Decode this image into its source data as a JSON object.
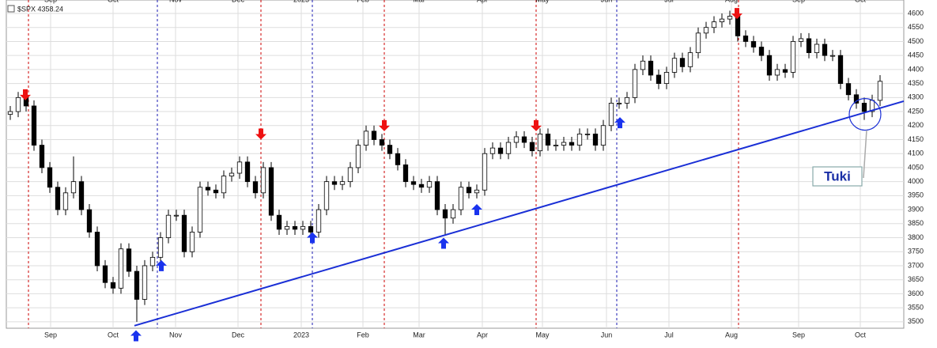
{
  "chart_data": {
    "type": "candlestick",
    "title": "$SPX 4358.24",
    "open": [
      4240,
      4250,
      4300,
      4270,
      4130,
      4050,
      3980,
      3900,
      3960,
      4000,
      3900,
      3820,
      3700,
      3640,
      3620,
      3760,
      3680,
      3580,
      3700,
      3730,
      3800,
      3880,
      3880,
      3750,
      3820,
      3980,
      3970,
      3960,
      4020,
      4030,
      4070,
      4000,
      3960,
      4050,
      3880,
      3830,
      3840,
      3830,
      3840,
      3820,
      3900,
      4000,
      3990,
      4000,
      4050,
      4130,
      4180,
      4150,
      4130,
      4100,
      4060,
      4000,
      3990,
      3980,
      4000,
      3900,
      3870,
      3900,
      3980,
      3960,
      3970,
      4100,
      4120,
      4100,
      4140,
      4160,
      4140,
      4110,
      4170,
      4130,
      4130,
      4140,
      4130,
      4170,
      4170,
      4130,
      4200,
      4280,
      4280,
      4300,
      4400,
      4430,
      4380,
      4350,
      4390,
      4440,
      4410,
      4460,
      4530,
      4550,
      4570,
      4580,
      4590,
      4520,
      4500,
      4480,
      4450,
      4380,
      4400,
      4390,
      4500,
      4510,
      4460,
      4490,
      4450,
      4450,
      4350,
      4310,
      4280,
      4250,
      4290
    ],
    "high": [
      4270,
      4320,
      4320,
      4290,
      4150,
      4070,
      4000,
      3980,
      4090,
      4020,
      3920,
      3840,
      3720,
      3660,
      3780,
      3780,
      3700,
      3720,
      3750,
      3820,
      3900,
      3900,
      3900,
      3840,
      4000,
      4000,
      3990,
      4040,
      4050,
      4090,
      4090,
      4020,
      4070,
      4070,
      3900,
      3860,
      3860,
      3860,
      3860,
      3920,
      4020,
      4020,
      4020,
      4070,
      4150,
      4200,
      4200,
      4170,
      4150,
      4120,
      4080,
      4020,
      4010,
      4020,
      4020,
      3920,
      3920,
      4000,
      4000,
      3990,
      4120,
      4140,
      4140,
      4160,
      4180,
      4180,
      4160,
      4190,
      4190,
      4150,
      4160,
      4160,
      4190,
      4190,
      4190,
      4220,
      4300,
      4300,
      4320,
      4420,
      4450,
      4450,
      4400,
      4410,
      4460,
      4460,
      4480,
      4550,
      4570,
      4590,
      4600,
      4610,
      4610,
      4540,
      4520,
      4500,
      4470,
      4420,
      4420,
      4520,
      4530,
      4530,
      4510,
      4510,
      4470,
      4470,
      4370,
      4330,
      4300,
      4310,
      4380
    ],
    "low": [
      4220,
      4230,
      4250,
      4110,
      4030,
      3960,
      3880,
      3880,
      3940,
      3880,
      3800,
      3680,
      3620,
      3600,
      3600,
      3660,
      3500,
      3560,
      3680,
      3710,
      3780,
      3860,
      3730,
      3730,
      3800,
      3950,
      3940,
      3940,
      4000,
      4010,
      3980,
      3940,
      3940,
      3860,
      3810,
      3810,
      3810,
      3810,
      3800,
      3800,
      3880,
      3970,
      3970,
      3980,
      4030,
      4110,
      4130,
      4110,
      4080,
      4040,
      3980,
      3970,
      3960,
      3960,
      3880,
      3810,
      3850,
      3880,
      3940,
      3940,
      3950,
      4080,
      4080,
      4080,
      4120,
      4120,
      4090,
      4090,
      4110,
      4110,
      4110,
      4110,
      4110,
      4150,
      4110,
      4110,
      4180,
      4260,
      4260,
      4280,
      4380,
      4360,
      4330,
      4330,
      4370,
      4390,
      4390,
      4440,
      4510,
      4530,
      4550,
      4560,
      4500,
      4480,
      4460,
      4430,
      4360,
      4360,
      4370,
      4370,
      4480,
      4440,
      4440,
      4430,
      4430,
      4330,
      4290,
      4260,
      4220,
      4230,
      4270
    ],
    "close": [
      4250,
      4300,
      4270,
      4130,
      4050,
      3980,
      3900,
      3960,
      4000,
      3900,
      3820,
      3700,
      3640,
      3620,
      3760,
      3680,
      3580,
      3700,
      3730,
      3800,
      3880,
      3880,
      3750,
      3820,
      3980,
      3970,
      3960,
      4020,
      4030,
      4070,
      4000,
      3960,
      4050,
      3880,
      3830,
      3840,
      3830,
      3840,
      3820,
      3900,
      4000,
      3990,
      4000,
      4050,
      4130,
      4180,
      4150,
      4130,
      4100,
      4060,
      4000,
      3990,
      3980,
      4000,
      3900,
      3870,
      3900,
      3980,
      3960,
      3970,
      4100,
      4120,
      4100,
      4140,
      4160,
      4140,
      4110,
      4170,
      4130,
      4130,
      4140,
      4130,
      4170,
      4170,
      4130,
      4200,
      4280,
      4280,
      4300,
      4400,
      4430,
      4380,
      4350,
      4390,
      4440,
      4410,
      4460,
      4530,
      4550,
      4570,
      4580,
      4590,
      4520,
      4500,
      4480,
      4450,
      4380,
      4400,
      4390,
      4500,
      4510,
      4460,
      4490,
      4450,
      4450,
      4350,
      4310,
      4280,
      4250,
      4290,
      4358
    ],
    "xlim": [
      -0.5,
      113
    ],
    "xticks": [
      {
        "value": 5.1,
        "label": "Sep"
      },
      {
        "value": 13,
        "label": "Oct"
      },
      {
        "value": 20.9,
        "label": "Nov"
      },
      {
        "value": 28.8,
        "label": "Dec"
      },
      {
        "value": 36.8,
        "label": "2023"
      },
      {
        "value": 44.6,
        "label": "Feb"
      },
      {
        "value": 51.7,
        "label": "Mar"
      },
      {
        "value": 59.7,
        "label": "Apr"
      },
      {
        "value": 67.3,
        "label": "May"
      },
      {
        "value": 75.4,
        "label": "Jun"
      },
      {
        "value": 83.3,
        "label": "Jul"
      },
      {
        "value": 91.2,
        "label": "Aug"
      },
      {
        "value": 99.7,
        "label": "Sep"
      },
      {
        "value": 107.5,
        "label": "Oct"
      }
    ],
    "ylim": [
      3477,
      4648
    ],
    "yticks": [
      3500,
      3550,
      3600,
      3650,
      3700,
      3750,
      3800,
      3850,
      3900,
      3950,
      4000,
      4050,
      4100,
      4150,
      4200,
      4250,
      4300,
      4350,
      4400,
      4450,
      4500,
      4550,
      4600
    ],
    "grid": true,
    "trendline": {
      "x": [
        15.7,
        113
      ],
      "y": [
        3486,
        4287
      ],
      "color": "#1a2fd6"
    },
    "signal_lines": {
      "x": [
        2.3,
        31.7,
        47.3,
        66.5,
        92.1,
        18.6,
        38.2,
        76.7
      ],
      "colors": [
        "#cc0000",
        "#cc0000",
        "#cc0000",
        "#cc0000",
        "#cc0000",
        "#1a1ab0",
        "#1a1ab0",
        "#1a1ab0"
      ]
    },
    "sell_arrows": {
      "x": [
        1.9,
        31.7,
        47.3,
        66.5,
        91.9
      ],
      "y": [
        4290,
        4150,
        4180,
        4180,
        4580
      ],
      "color": "#ee1111"
    },
    "buy_arrows": {
      "x": [
        15.9,
        19.1,
        38.2,
        54.8,
        59,
        77.1
      ],
      "y": [
        3470,
        3720,
        3820,
        3800,
        3920,
        4230
      ],
      "color": "#1a33ee"
    },
    "annotation": {
      "text": "Tuki",
      "x": 108.1,
      "y": 4240
    }
  }
}
